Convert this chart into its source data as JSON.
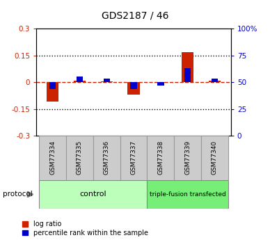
{
  "title": "GDS2187 / 46",
  "samples": [
    "GSM77334",
    "GSM77335",
    "GSM77336",
    "GSM77337",
    "GSM77338",
    "GSM77339",
    "GSM77340"
  ],
  "log_ratio": [
    -0.11,
    0.01,
    0.005,
    -0.07,
    -0.003,
    0.17,
    0.01
  ],
  "percentile_rank": [
    -0.04,
    0.03,
    0.02,
    -0.04,
    -0.02,
    0.08,
    0.02
  ],
  "ylim": [
    -0.3,
    0.3
  ],
  "yticks_left": [
    -0.3,
    -0.15,
    0.0,
    0.15,
    0.3
  ],
  "yticks_left_labels": [
    "-0.3",
    "-0.15",
    "0",
    "0.15",
    "0.3"
  ],
  "yticks_right": [
    0,
    25,
    50,
    75,
    100
  ],
  "yticks_right_vals": [
    -0.3,
    -0.15,
    0.0,
    0.15,
    0.3
  ],
  "yticks_right_labels": [
    "0",
    "25",
    "50",
    "75",
    "100%"
  ],
  "color_red": "#cc2200",
  "color_blue": "#0000cc",
  "color_dashed_red": "#cc2200",
  "group_control_color": "#bbffbb",
  "group_tf_color": "#77ee77",
  "sample_box_color": "#cccccc",
  "protocol_label": "protocol",
  "legend_logratio": "log ratio",
  "legend_percentile": "percentile rank within the sample",
  "bar_width": 0.3,
  "n_control": 4,
  "n_tf": 3
}
